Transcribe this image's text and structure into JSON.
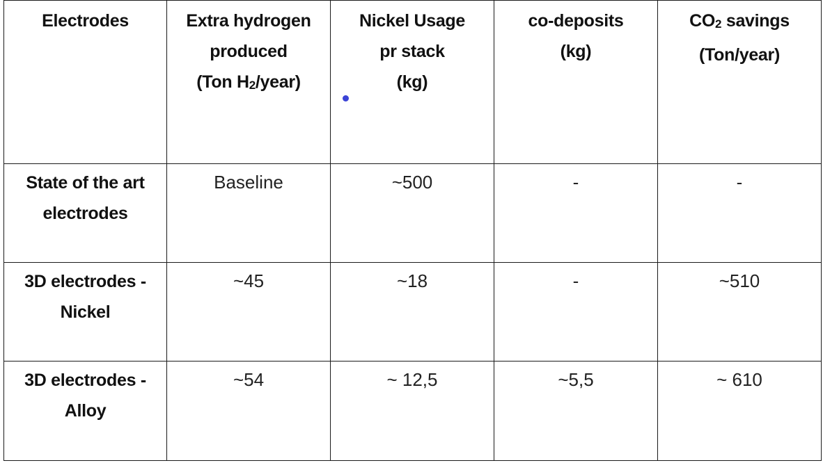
{
  "table": {
    "headers": [
      {
        "lines": [
          "Electrodes"
        ]
      },
      {
        "lines": [
          "Extra hydrogen",
          "produced"
        ],
        "unit_prefix": "(Ton H",
        "unit_sub": "2",
        "unit_suffix": "/year)"
      },
      {
        "lines": [
          "Nickel Usage",
          "pr stack",
          "(kg)"
        ]
      },
      {
        "lines": [
          "co-deposits",
          "(kg)"
        ]
      },
      {
        "pre": "CO",
        "sub": "2",
        "post": " savings",
        "line2": "(Ton/year)"
      }
    ],
    "rows": [
      {
        "label": [
          "State of the art",
          "electrodes"
        ],
        "hydrogen": "Baseline",
        "nickel": "~500",
        "codeposits": "-",
        "co2": "-"
      },
      {
        "label": [
          "3D electrodes -",
          "Nickel"
        ],
        "hydrogen": "~45",
        "nickel": "~18",
        "codeposits": "-",
        "co2": "~510"
      },
      {
        "label": [
          "3D electrodes -",
          "Alloy"
        ],
        "hydrogen": "~54",
        "nickel": "~ 12,5",
        "codeposits": "~5,5",
        "co2": "~ 610"
      }
    ]
  },
  "colors": {
    "border": "#1a1a1a",
    "marker_dot": "#3b43d6"
  }
}
